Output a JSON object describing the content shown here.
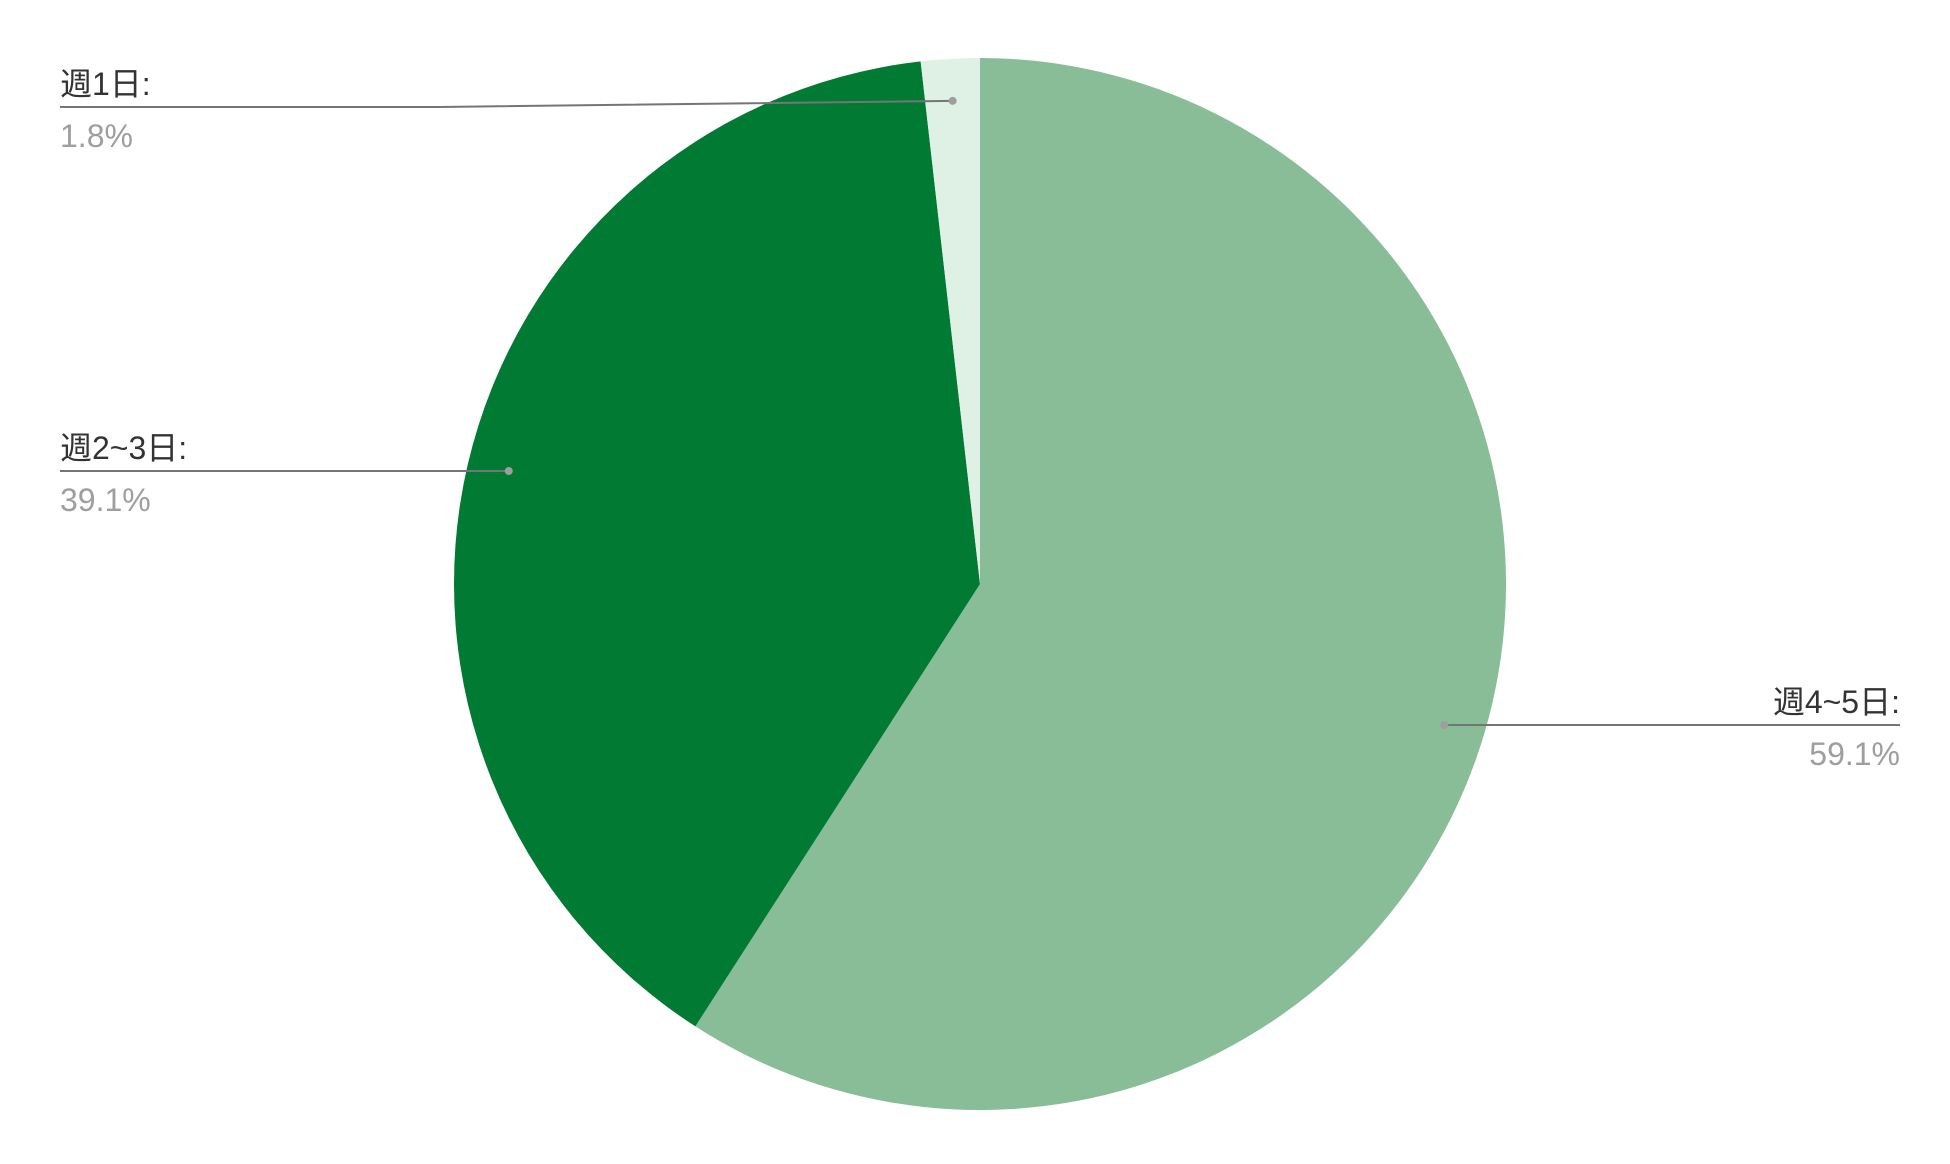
{
  "chart_data": {
    "type": "pie",
    "start_angle": "top",
    "direction": "clockwise",
    "slices": [
      {
        "label": "週4~5日:",
        "value": 59.1,
        "value_label": "59.1%",
        "color": "#88bd98"
      },
      {
        "label": "週2~3日:",
        "value": 39.1,
        "value_label": "39.1%",
        "color": "#017a33"
      },
      {
        "label": "週1日:",
        "value": 1.8,
        "value_label": "1.8%",
        "color": "#dff0e4"
      }
    ],
    "legend": "none",
    "label_line_color": "#757575"
  }
}
